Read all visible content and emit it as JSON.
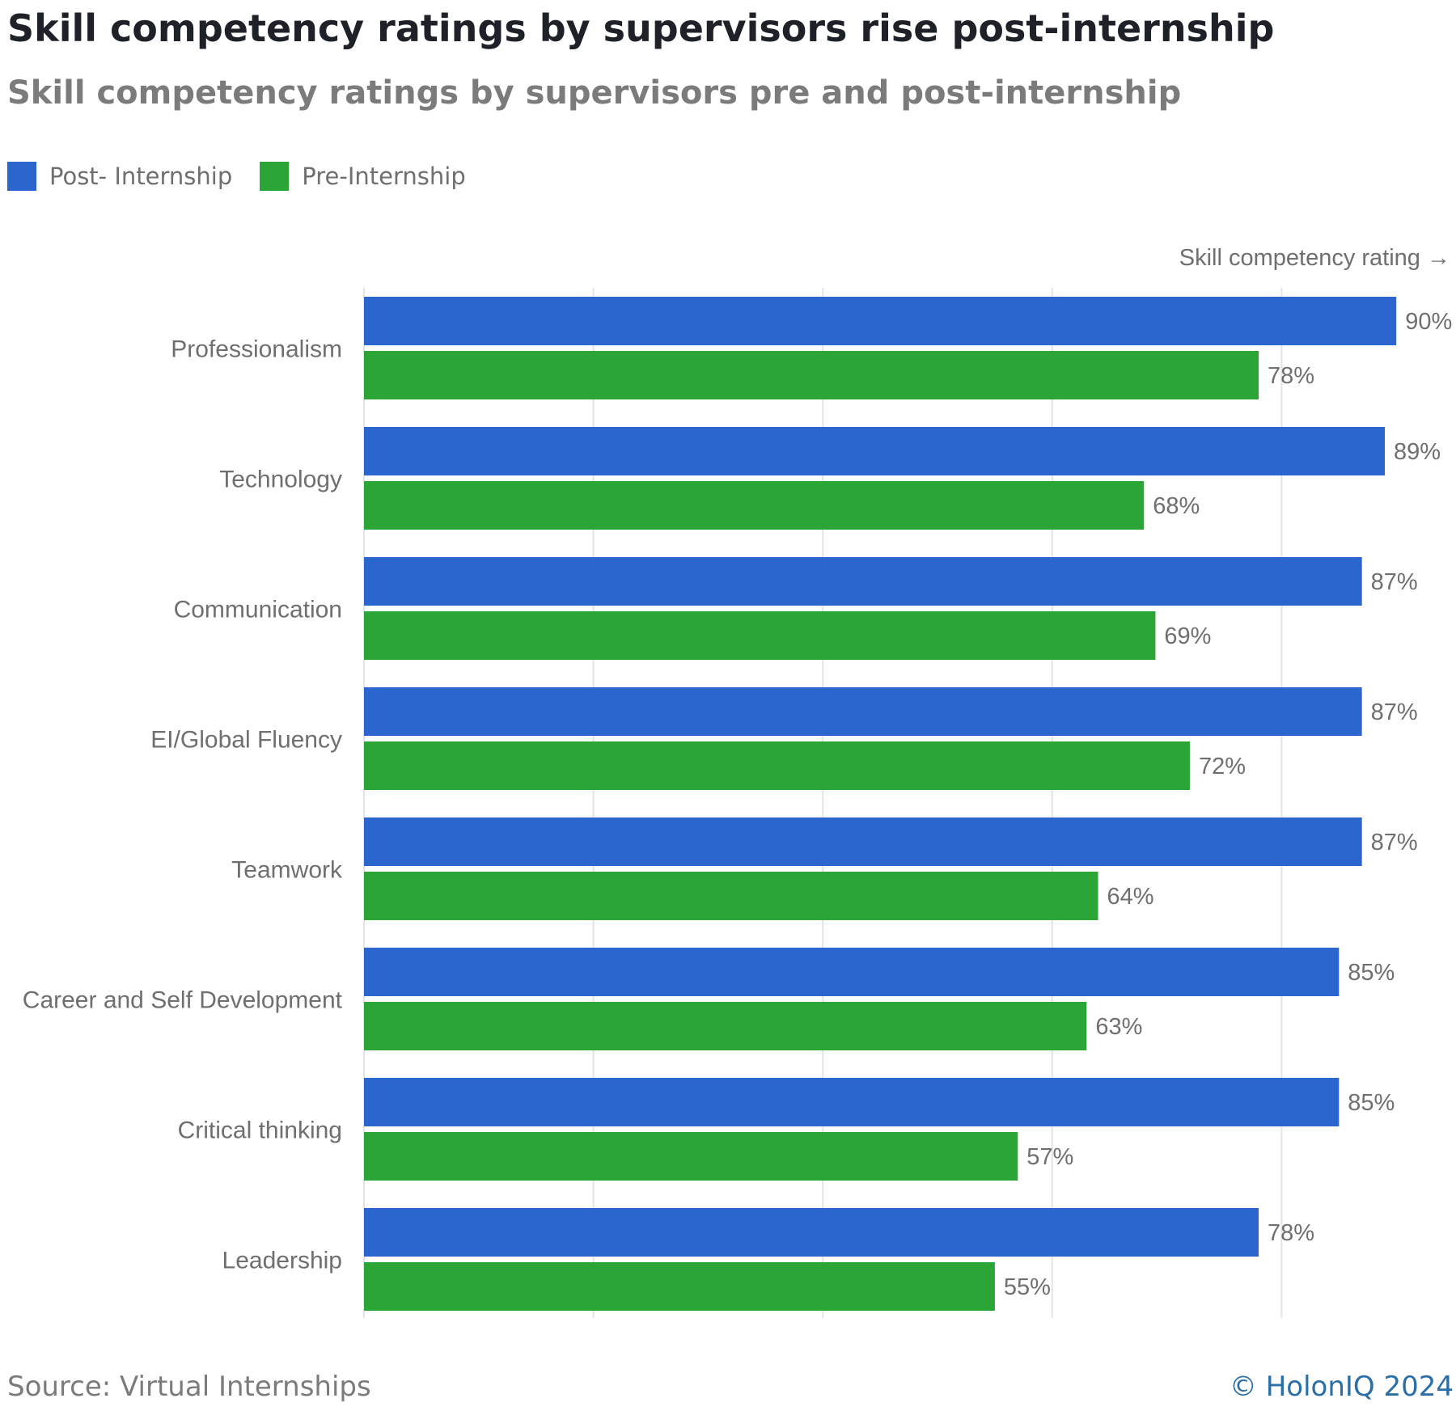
{
  "title": "Skill competency ratings by supervisors rise post-internship",
  "subtitle": "Skill competency ratings by supervisors pre and post-internship",
  "legend": {
    "items": [
      {
        "label": "Post- Internship",
        "color": "#2b66cf"
      },
      {
        "label": "Pre-Internship",
        "color": "#2ba636"
      }
    ]
  },
  "footer": {
    "source": "Source: Virtual Internships",
    "credit": "© HolonIQ 2024"
  },
  "chart_data": {
    "type": "bar",
    "orientation": "horizontal",
    "xlabel": "Skill competency rating →",
    "ylabel": "",
    "xlim": [
      0,
      100
    ],
    "grid": true,
    "legend_position": "top-left",
    "value_suffix": "%",
    "categories": [
      "Professionalism",
      "Technology",
      "Communication",
      "EI/Global Fluency",
      "Teamwork",
      "Career and Self Development",
      "Critical thinking",
      "Leadership"
    ],
    "series": [
      {
        "name": "Post- Internship",
        "color": "#2b66cf",
        "values": [
          90,
          89,
          87,
          87,
          87,
          85,
          85,
          78
        ]
      },
      {
        "name": "Pre-Internship",
        "color": "#2ba636",
        "values": [
          78,
          68,
          69,
          72,
          64,
          63,
          57,
          55
        ]
      }
    ]
  }
}
